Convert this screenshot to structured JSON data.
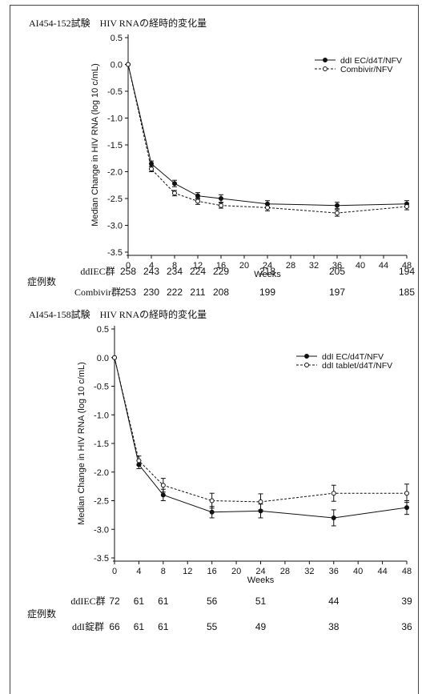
{
  "chart_data": [
    {
      "type": "line",
      "title": "AI454-152試験　HIV RNAの経時的変化量",
      "xlabel": "Weeks",
      "ylabel": "Median Change in HIV RNA (log 10 c/mL)",
      "xlim": [
        0,
        48
      ],
      "ylim": [
        -3.5,
        0.5
      ],
      "xticks": [
        0,
        4,
        8,
        12,
        16,
        20,
        24,
        28,
        32,
        36,
        40,
        44,
        48
      ],
      "yticks": [
        0.5,
        0.0,
        -0.5,
        -1.0,
        -1.5,
        -2.0,
        -2.5,
        -3.0,
        -3.5
      ],
      "ytick_labels": [
        "0.5",
        "0.0",
        "-0.5",
        "-1.0",
        "-1.5",
        "-2.0",
        "-2.5",
        "-3.0",
        "-3.5"
      ],
      "legend_position": "top-right",
      "series": [
        {
          "name": "ddI EC/d4T/NFV",
          "style": "solid-filled",
          "x": [
            0,
            4,
            8,
            12,
            16,
            24,
            36,
            48
          ],
          "y": [
            0.0,
            -1.85,
            -2.22,
            -2.45,
            -2.5,
            -2.6,
            -2.63,
            -2.6
          ],
          "err": [
            0,
            0.05,
            0.06,
            0.06,
            0.07,
            0.06,
            0.06,
            0.06
          ]
        },
        {
          "name": "Combivir/NFV",
          "style": "dashed-open",
          "x": [
            0,
            4,
            8,
            12,
            16,
            24,
            36,
            48
          ],
          "y": [
            0.0,
            -1.95,
            -2.4,
            -2.55,
            -2.63,
            -2.67,
            -2.77,
            -2.65
          ],
          "err": [
            0,
            0.05,
            0.05,
            0.06,
            0.05,
            0.06,
            0.06,
            0.06
          ]
        }
      ],
      "table": {
        "group_label": "症例数",
        "rows": [
          {
            "label": "ddIEC群",
            "values": [
              "258",
              "243",
              "234",
              "224",
              "229",
              "218",
              "205",
              "194"
            ]
          },
          {
            "label": "Combivir群",
            "values": [
              "253",
              "230",
              "222",
              "211",
              "208",
              "199",
              "197",
              "185"
            ]
          }
        ]
      }
    },
    {
      "type": "line",
      "title": "AI454-158試験　HIV RNAの経時的変化量",
      "xlabel": "Weeks",
      "ylabel": "Median Change in HIV RNA (log 10 c/mL)",
      "xlim": [
        0,
        48
      ],
      "ylim": [
        -3.5,
        0.5
      ],
      "xticks": [
        0,
        4,
        8,
        12,
        16,
        20,
        24,
        28,
        32,
        36,
        40,
        44,
        48
      ],
      "yticks": [
        0.5,
        0.0,
        -0.5,
        -1.0,
        -1.5,
        -2.0,
        -2.5,
        -3.0,
        -3.5
      ],
      "ytick_labels": [
        "0.5",
        "0.0",
        "-0.5",
        "-1.0",
        "-1.5",
        "-2.0",
        "-2.5",
        "-3.0",
        "-3.5"
      ],
      "legend_position": "top-right",
      "series": [
        {
          "name": "ddI EC/d4T/NFV",
          "style": "solid-filled",
          "x": [
            0,
            4,
            8,
            16,
            24,
            36,
            48
          ],
          "y": [
            0.0,
            -1.87,
            -2.4,
            -2.7,
            -2.68,
            -2.8,
            -2.62
          ],
          "err": [
            0,
            0.07,
            0.1,
            0.1,
            0.12,
            0.14,
            0.12
          ]
        },
        {
          "name": "ddI tablet/d4T/NFV",
          "style": "dashed-open",
          "x": [
            0,
            4,
            8,
            16,
            24,
            36,
            48
          ],
          "y": [
            0.0,
            -1.8,
            -2.23,
            -2.5,
            -2.52,
            -2.37,
            -2.37
          ],
          "err": [
            0,
            0.08,
            0.12,
            0.13,
            0.14,
            0.14,
            0.16
          ]
        }
      ],
      "table": {
        "group_label": "症例数",
        "rows": [
          {
            "label": "ddIEC群",
            "values": [
              "72",
              "61",
              "61",
              "56",
              "51",
              "44",
              "39"
            ]
          },
          {
            "label": "ddI錠群",
            "values": [
              "66",
              "61",
              "61",
              "55",
              "49",
              "38",
              "36"
            ]
          }
        ]
      }
    }
  ]
}
